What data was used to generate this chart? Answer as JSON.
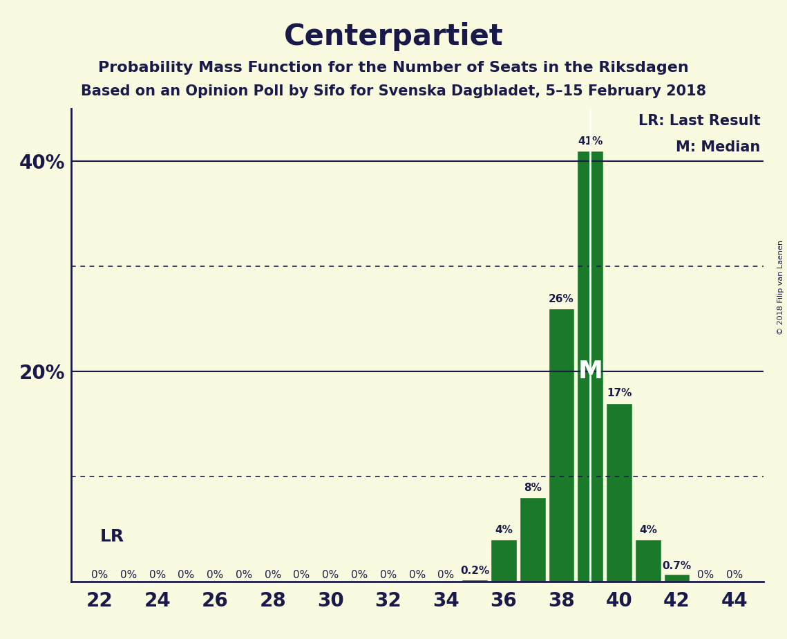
{
  "title": "Centerpartiet",
  "subtitle1": "Probability Mass Function for the Number of Seats in the Riksdagen",
  "subtitle2": "Based on an Opinion Poll by Sifo for Svenska Dagbladet, 5–15 February 2018",
  "copyright": "© 2018 Filip van Laenen",
  "seats": [
    22,
    23,
    24,
    25,
    26,
    27,
    28,
    29,
    30,
    31,
    32,
    33,
    34,
    35,
    36,
    37,
    38,
    39,
    40,
    41,
    42,
    43,
    44
  ],
  "values": [
    0.0,
    0.0,
    0.0,
    0.0,
    0.0,
    0.0,
    0.0,
    0.0,
    0.0,
    0.0,
    0.0,
    0.0,
    0.0,
    0.2,
    4.0,
    8.0,
    26.0,
    41.0,
    17.0,
    4.0,
    0.7,
    0.0,
    0.0
  ],
  "bar_labels": [
    "0%",
    "0%",
    "0%",
    "0%",
    "0%",
    "0%",
    "0%",
    "0%",
    "0%",
    "0%",
    "0%",
    "0%",
    "0%",
    "0.2%",
    "4%",
    "8%",
    "26%",
    "41%",
    "17%",
    "4%",
    "0.7%",
    "0%",
    "0%"
  ],
  "bar_color": "#1a7a2a",
  "background_color": "#fafae0",
  "text_color": "#1a1a4a",
  "ylim": [
    0,
    45
  ],
  "solid_ylines": [
    20,
    40
  ],
  "dotted_ylines": [
    10,
    30
  ],
  "median_seat": 39,
  "legend_lr": "LR: Last Result",
  "legend_m": "M: Median",
  "lr_label": "LR",
  "m_label": "M"
}
